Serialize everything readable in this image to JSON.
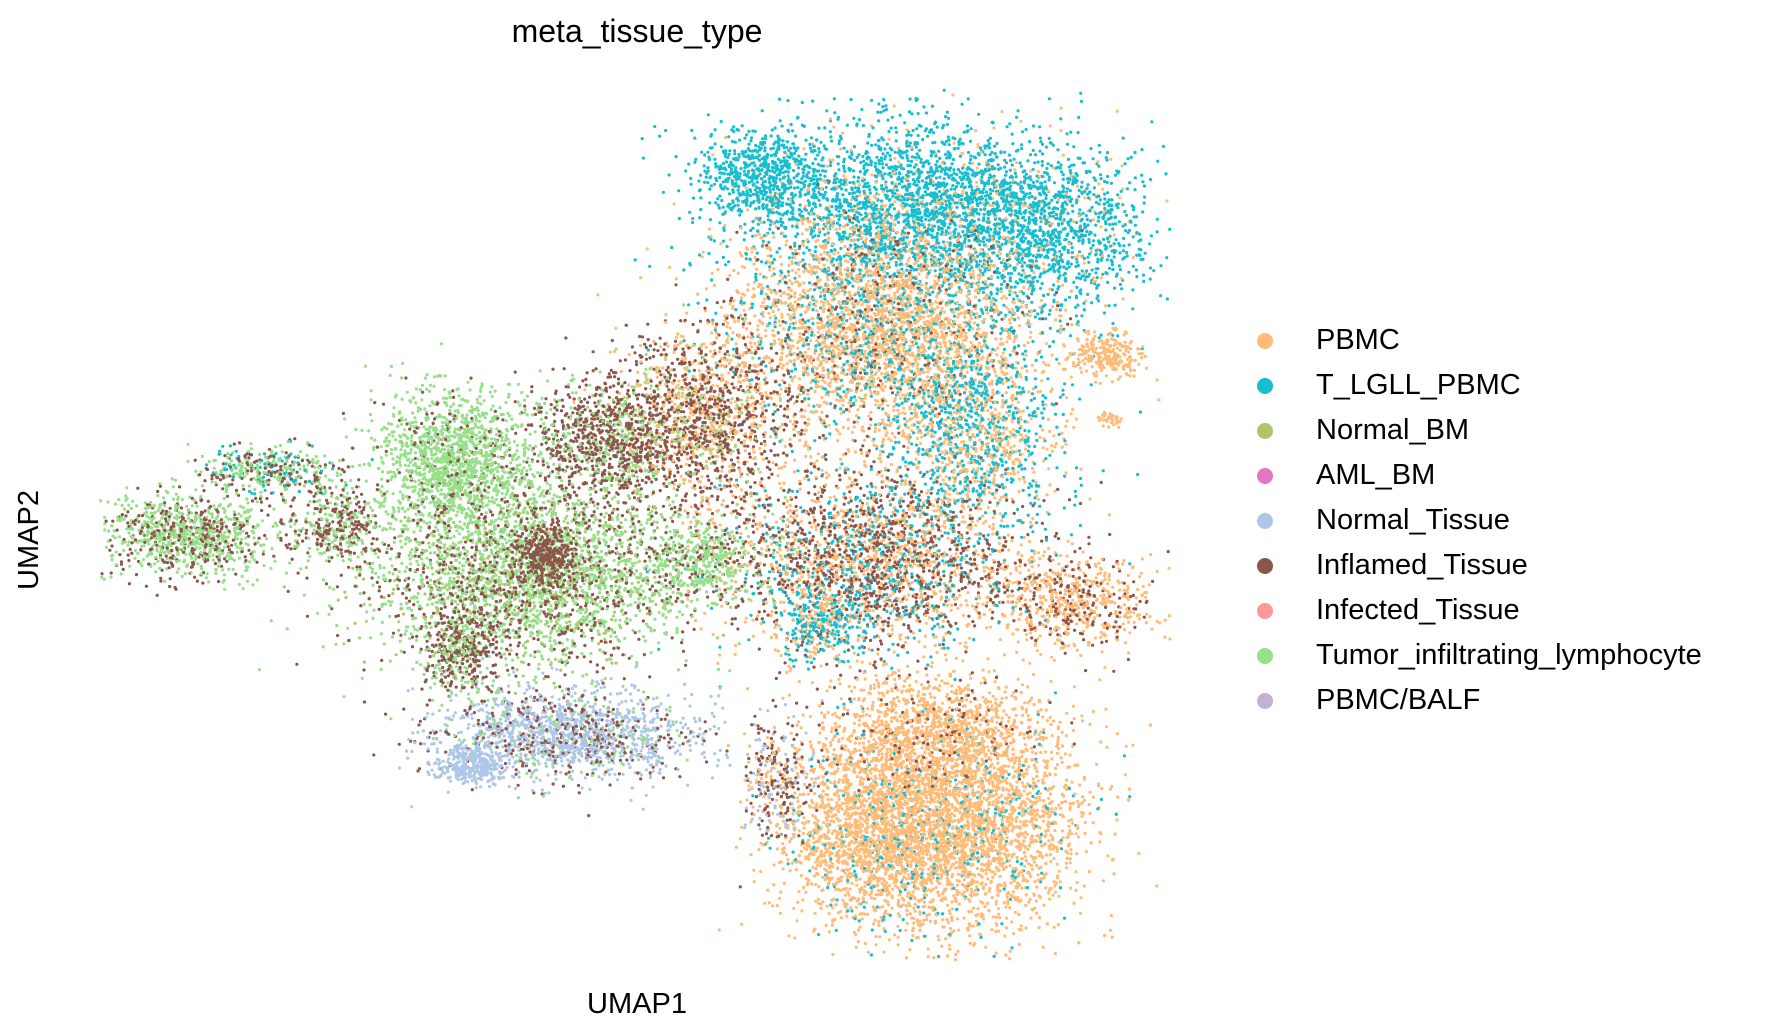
{
  "chart_data": {
    "type": "scatter",
    "title": "meta_tissue_type",
    "xlabel": "UMAP1",
    "ylabel": "UMAP2",
    "grid": false,
    "legend_position": "right",
    "series": [
      {
        "name": "PBMC",
        "color": "#ffbb78"
      },
      {
        "name": "T_LGLL_PBMC",
        "color": "#17becf"
      },
      {
        "name": "Normal_BM",
        "color": "#aec66a"
      },
      {
        "name": "AML_BM",
        "color": "#e377c2"
      },
      {
        "name": "Normal_Tissue",
        "color": "#aec7e8"
      },
      {
        "name": "Inflamed_Tissue",
        "color": "#8c564b"
      },
      {
        "name": "Infected_Tissue",
        "color": "#ff9896"
      },
      {
        "name": "Tumor_infiltrating_lymphocyte",
        "color": "#98df8a"
      },
      {
        "name": "PBMC/BALF",
        "color": "#c5b0d5"
      }
    ]
  }
}
